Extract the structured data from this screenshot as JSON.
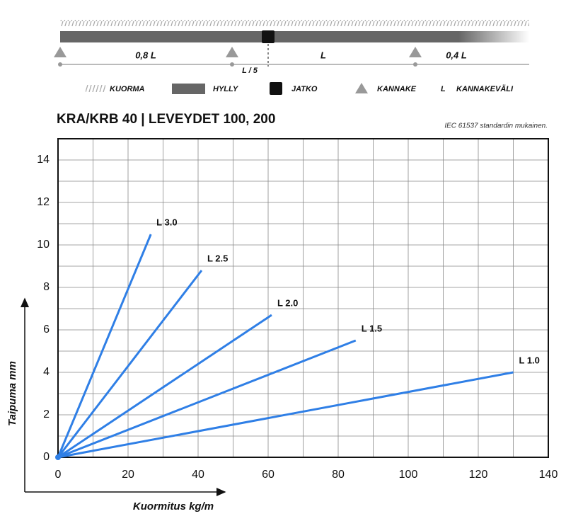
{
  "diagram": {
    "span_labels": [
      "0,8 L",
      "L",
      "0,4 L"
    ],
    "splice_label": "L / 5",
    "legend": [
      {
        "symbol": null,
        "label": "KUORMA"
      },
      {
        "symbol": null,
        "label": "HYLLY"
      },
      {
        "symbol": null,
        "label": "JATKO"
      },
      {
        "symbol": null,
        "label": "KANNAKE"
      },
      {
        "symbol": "L",
        "label": "KANNAKEVÄLI"
      }
    ]
  },
  "chart_data": {
    "type": "line",
    "title": "KRA/KRB 40 | LEVEYDET 100, 200",
    "annotation": "IEC 61537 standardin mukainen.",
    "x_label": "Kuormitus kg/m",
    "y_label": "Taipuma mm",
    "xlim": [
      0,
      140
    ],
    "ylim": [
      0,
      15
    ],
    "xticks": [
      0,
      20,
      40,
      60,
      80,
      100,
      120,
      140
    ],
    "yticks": [
      0,
      2,
      4,
      6,
      8,
      10,
      12,
      14
    ],
    "x_minor_ticks": [
      10,
      30,
      50,
      70,
      90,
      110,
      130
    ],
    "y_minor_ticks": [
      1,
      3,
      5,
      7,
      9,
      11,
      13,
      15
    ],
    "grid": true,
    "series": [
      {
        "name": "L 3.0",
        "color": "#2f7fe6",
        "x": [
          0,
          26.5
        ],
        "values": [
          0,
          10.5
        ]
      },
      {
        "name": "L 2.5",
        "color": "#2f7fe6",
        "x": [
          0,
          41
        ],
        "values": [
          0,
          8.8
        ]
      },
      {
        "name": "L 2.0",
        "color": "#2f7fe6",
        "x": [
          0,
          61
        ],
        "values": [
          0,
          6.7
        ]
      },
      {
        "name": "L 1.5",
        "color": "#2f7fe6",
        "x": [
          0,
          85
        ],
        "values": [
          0,
          5.5
        ]
      },
      {
        "name": "L 1.0",
        "color": "#2f7fe6",
        "x": [
          0,
          130
        ],
        "values": [
          0,
          4.0
        ]
      }
    ]
  }
}
